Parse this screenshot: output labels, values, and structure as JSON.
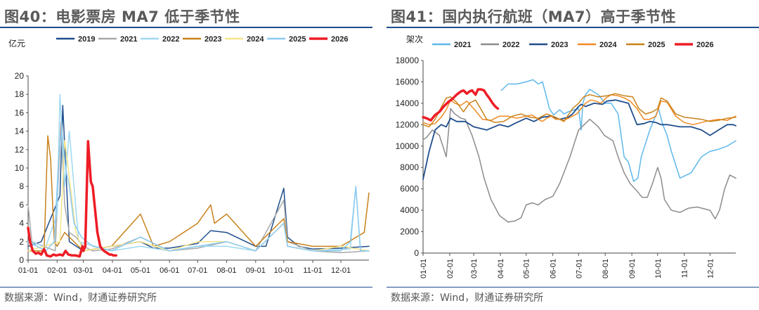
{
  "panels": [
    {
      "title": "图40：电影票房 MA7 低于季节性",
      "source": "数据来源：Wind，财通证券研究所",
      "chart_data": {
        "type": "line",
        "ylabel": "亿元",
        "ylim": [
          0,
          20
        ],
        "yticks": [
          0,
          2,
          4,
          6,
          8,
          10,
          12,
          14,
          16,
          18,
          20
        ],
        "xticks": [
          "01-01",
          "02-01",
          "03-01",
          "04-01",
          "05-01",
          "06-01",
          "07-01",
          "08-01",
          "09-01",
          "10-01",
          "11-01",
          "12-01"
        ],
        "legend_position": "top",
        "series": [
          {
            "name": "2019",
            "color": "#1f4e8c",
            "width": 1.5,
            "x": [
              1,
              15,
              35,
              38,
              45,
              60,
              90,
              121,
              135,
              152,
              182,
              196,
              213,
              244,
              255,
              274,
              278,
              290,
              305,
              335,
              365
            ],
            "y": [
              1.5,
              2,
              7,
              16.8,
              2,
              1,
              1.5,
              2,
              1.3,
              1.3,
              1.8,
              3.2,
              3,
              1.5,
              1.5,
              7.8,
              2.5,
              1.5,
              1.2,
              1.3,
              1.5
            ]
          },
          {
            "name": "2021",
            "color": "#a9a9a9",
            "width": 1.5,
            "x": [
              1,
              5,
              30,
              36,
              40,
              45,
              52,
              60,
              70,
              90,
              121,
              152,
              182,
              213,
              244,
              274,
              278,
              305,
              335,
              365
            ],
            "y": [
              6,
              2,
              1,
              15,
              6,
              3,
              2.5,
              1.5,
              1,
              1.2,
              2.5,
              1,
              1.3,
              2,
              1,
              6.5,
              2,
              1,
              0.8,
              1
            ]
          },
          {
            "name": "2022",
            "color": "#9fd8f2",
            "width": 1.5,
            "x": [
              1,
              20,
              32,
              35,
              40,
              45,
              55,
              90,
              121,
              152,
              182,
              213,
              244,
              274,
              278,
              305,
              345,
              351,
              356,
              365
            ],
            "y": [
              2,
              1.5,
              5,
              18,
              8,
              14,
              2,
              1,
              1.5,
              1,
              1.5,
              1.5,
              1,
              4,
              1.5,
              1,
              1.2,
              8,
              1,
              1
            ]
          },
          {
            "name": "2023",
            "color": "#c8821a",
            "width": 1.5,
            "x": [
              1,
              18,
              22,
              25,
              29,
              32,
              40,
              60,
              90,
              121,
              135,
              152,
              182,
              196,
              200,
              213,
              244,
              274,
              278,
              305,
              335,
              360,
              365
            ],
            "y": [
              1,
              1,
              13.5,
              11,
              2,
              1.5,
              3,
              1,
              1.5,
              5,
              1.5,
              2,
              4,
              6,
              4,
              5,
              1.5,
              4.5,
              2,
              1.5,
              1.5,
              3,
              7.3
            ]
          },
          {
            "name": "2024",
            "color": "#f5e48a",
            "width": 1.5,
            "x": [
              1,
              35,
              40,
              45,
              52,
              60,
              90,
              121,
              152,
              182,
              213,
              244,
              274,
              278,
              305,
              335,
              365
            ],
            "y": [
              1,
              2,
              13,
              9,
              3,
              1,
              1.5,
              2,
              1,
              2,
              2,
              1,
              4,
              1.5,
              1,
              1.5,
              1
            ]
          },
          {
            "name": "2025",
            "color": "#8ccbf0",
            "width": 1.5,
            "x": [
              1,
              20,
              29,
              31,
              34,
              37,
              41,
              45,
              50,
              58,
              70,
              90,
              121,
              152,
              182,
              213,
              244,
              274,
              278,
              305,
              335,
              345,
              351,
              356,
              365
            ],
            "y": [
              2,
              1,
              2,
              6,
              12,
              14,
              10,
              8,
              4,
              2.5,
              1.5,
              1,
              2.5,
              1,
              1.5,
              2,
              1,
              4,
              1.5,
              1,
              1,
              2,
              8,
              1,
              1
            ]
          },
          {
            "name": "2026",
            "color": "#ee1c25",
            "width": 3.5,
            "x": [
              1,
              3,
              6,
              9,
              12,
              15,
              18,
              21,
              25,
              28,
              31,
              35,
              38,
              41,
              44,
              48,
              52,
              56,
              59,
              60,
              62,
              65,
              68,
              70,
              72,
              75,
              78,
              80,
              82,
              85,
              88,
              90,
              92,
              95
            ],
            "y": [
              3.5,
              2,
              1,
              0.7,
              0.8,
              0.6,
              1.2,
              0.5,
              0.4,
              0.6,
              0.5,
              0.6,
              0.5,
              1,
              0.6,
              0.5,
              0.5,
              0.4,
              1.5,
              1,
              1.5,
              12.9,
              8.5,
              8,
              6,
              3,
              1.5,
              1.2,
              1,
              0.8,
              0.6,
              0.6,
              0.5,
              0.5
            ]
          }
        ]
      }
    },
    {
      "title": "图41：国内执行航班（MA7）高于季节性",
      "source": "数据来源：Wind，财通证券研究所",
      "chart_data": {
        "type": "line",
        "ylabel": "架次",
        "ylim": [
          0,
          18000
        ],
        "yticks": [
          0,
          2000,
          4000,
          6000,
          8000,
          10000,
          12000,
          14000,
          16000,
          18000
        ],
        "xticks": [
          "01-01",
          "02-01",
          "03-01",
          "04-01",
          "05-01",
          "06-01",
          "07-01",
          "08-01",
          "09-01",
          "10-01",
          "11-01",
          "12-01"
        ],
        "legend_position": "top",
        "series": [
          {
            "name": "2021",
            "color": "#5fb8ec",
            "width": 1.5,
            "x": [
              92,
              100,
              110,
              121,
              129,
              135,
              140,
              145,
              148,
              153,
              160,
              165,
              170,
              177,
              182,
              185,
              187,
              190,
              195,
              205,
              213,
              220,
              228,
              235,
              240,
              246,
              251,
              255,
              265,
              275,
              280,
              285,
              290,
              300,
              313,
              325,
              335,
              345,
              355,
              365
            ],
            "y": [
              15200,
              15800,
              15800,
              16000,
              16200,
              15800,
              16000,
              14500,
              13500,
              12900,
              13400,
              13000,
              13200,
              13400,
              13500,
              11500,
              14000,
              14800,
              15300,
              14800,
              14000,
              14000,
              13000,
              9000,
              8500,
              6700,
              7000,
              9000,
              11500,
              13500,
              12000,
              11000,
              9500,
              7000,
              7500,
              9000,
              9500,
              9700,
              10000,
              10500
            ]
          },
          {
            "name": "2022",
            "color": "#8c8c8c",
            "width": 1.5,
            "x": [
              1,
              5,
              12,
              20,
              28,
              33,
              38,
              45,
              50,
              58,
              66,
              72,
              80,
              90,
              100,
              108,
              115,
              121,
              128,
              135,
              143,
              152,
              160,
              172,
              182,
              195,
              205,
              212,
              222,
              228,
              235,
              242,
              250,
              256,
              262,
              268,
              274,
              278,
              282,
              290,
              300,
              310,
              320,
              335,
              341,
              346,
              352,
              358,
              365
            ],
            "y": [
              10600,
              10800,
              11500,
              11000,
              9000,
              13500,
              13000,
              12600,
              12500,
              11000,
              9000,
              7000,
              5000,
              3500,
              2900,
              3000,
              3300,
              4500,
              4700,
              4500,
              5000,
              5300,
              6500,
              9000,
              11500,
              12500,
              11800,
              11000,
              10500,
              9000,
              7500,
              6500,
              5800,
              5200,
              5200,
              6500,
              8000,
              7000,
              5000,
              4000,
              3800,
              4200,
              4300,
              4000,
              3200,
              4000,
              6000,
              7300,
              7000
            ]
          },
          {
            "name": "2023",
            "color": "#1f4e8c",
            "width": 1.8,
            "x": [
              1,
              8,
              15,
              22,
              28,
              33,
              40,
              50,
              60,
              75,
              90,
              100,
              110,
              121,
              130,
              140,
              150,
              160,
              170,
              175,
              182,
              185,
              190,
              200,
              210,
              215,
              225,
              240,
              245,
              250,
              258,
              265,
              272,
              278,
              285,
              300,
              313,
              325,
              335,
              345,
              355,
              362,
              365
            ],
            "y": [
              6900,
              9500,
              11500,
              12000,
              11800,
              12600,
              12300,
              12300,
              11800,
              11500,
              12000,
              11800,
              12200,
              12600,
              12300,
              12700,
              12800,
              12500,
              12700,
              13000,
              13700,
              13900,
              13700,
              14000,
              13900,
              14200,
              14300,
              14000,
              13000,
              12000,
              12100,
              12300,
              12200,
              12000,
              12000,
              11800,
              11800,
              11500,
              11000,
              11500,
              12000,
              12000,
              11900
            ]
          },
          {
            "name": "2024",
            "color": "#f08a24",
            "width": 1.5,
            "x": [
              1,
              8,
              15,
              22,
              28,
              33,
              38,
              45,
              52,
              60,
              70,
              80,
              90,
              100,
              110,
              121,
              128,
              135,
              140,
              145,
              150,
              155,
              160,
              165,
              170,
              180,
              190,
              196,
              202,
              208,
              214,
              220,
              228,
              235,
              242,
              250,
              258,
              265,
              272,
              278,
              285,
              295,
              305,
              315,
              330,
              345,
              355,
              365
            ],
            "y": [
              12200,
              12000,
              12100,
              12700,
              13400,
              14300,
              14000,
              13800,
              14200,
              13500,
              12500,
              12400,
              12800,
              12800,
              12600,
              12800,
              12900,
              12500,
              12300,
              12600,
              12800,
              12500,
              12500,
              12400,
              12600,
              13000,
              14000,
              14300,
              14200,
              14000,
              14500,
              14800,
              14700,
              14500,
              14200,
              13500,
              12500,
              12500,
              12800,
              14200,
              14100,
              12800,
              12200,
              12000,
              12300,
              12500,
              12400,
              12800
            ]
          },
          {
            "name": "2025",
            "color": "#c8821a",
            "width": 1.5,
            "x": [
              1,
              8,
              15,
              22,
              28,
              33,
              40,
              48,
              55,
              62,
              68,
              75,
              85,
              95,
              105,
              115,
              125,
              135,
              145,
              155,
              165,
              175,
              182,
              188,
              195,
              205,
              215,
              225,
              235,
              245,
              252,
              260,
              268,
              274,
              278,
              285,
              295,
              305,
              315,
              325,
              335,
              345,
              355,
              365
            ],
            "y": [
              12000,
              11800,
              12500,
              13600,
              14500,
              14600,
              14100,
              13200,
              14000,
              14300,
              13500,
              12500,
              12200,
              12300,
              12800,
              13000,
              12700,
              12600,
              13000,
              12700,
              12300,
              13500,
              14000,
              14600,
              14800,
              14600,
              14700,
              14900,
              14700,
              14600,
              13500,
              13000,
              13200,
              13500,
              14500,
              14200,
              13000,
              12700,
              12600,
              12500,
              12300,
              12400,
              12600,
              12700
            ]
          },
          {
            "name": "2026",
            "color": "#ee1c25",
            "width": 3.5,
            "x": [
              1,
              5,
              10,
              15,
              20,
              25,
              30,
              35,
              40,
              45,
              48,
              52,
              55,
              58,
              62,
              65,
              68,
              72,
              75,
              78,
              82,
              85,
              88
            ],
            "y": [
              12700,
              12600,
              12400,
              12900,
              13200,
              13700,
              14100,
              14400,
              14800,
              15100,
              15200,
              14900,
              15100,
              15200,
              14800,
              15300,
              15300,
              15200,
              14800,
              14500,
              14000,
              13700,
              13500
            ]
          }
        ]
      }
    }
  ]
}
